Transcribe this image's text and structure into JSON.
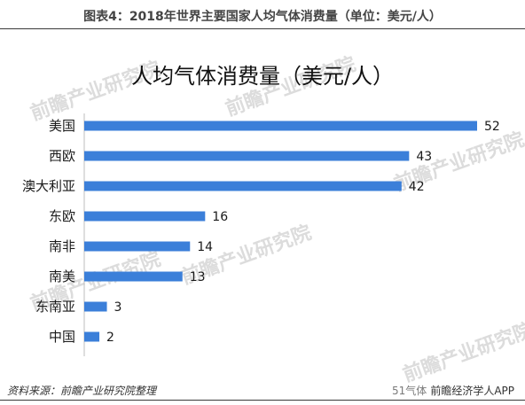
{
  "figure_caption": "图表4：2018年世界主要国家人均气体消费量（单位：美元/人）",
  "source_note": "资料来源：前瞻产业研究院整理",
  "credit": "前瞻经济学人APP",
  "wechat_overlay": "51气体",
  "watermark_text": "前瞻产业研究院",
  "colors": {
    "bar": "#3b7fd9",
    "text": "#1a1a1a"
  },
  "chart_data": {
    "type": "bar",
    "orientation": "horizontal",
    "title": "人均气体消费量（美元/人）",
    "categories": [
      "美国",
      "西欧",
      "澳大利亚",
      "东欧",
      "南非",
      "南美",
      "东南亚",
      "中国"
    ],
    "values": [
      52,
      43,
      42,
      16,
      14,
      13,
      3,
      2
    ],
    "xlim": [
      0,
      52
    ],
    "grid": false,
    "legend": "none"
  }
}
